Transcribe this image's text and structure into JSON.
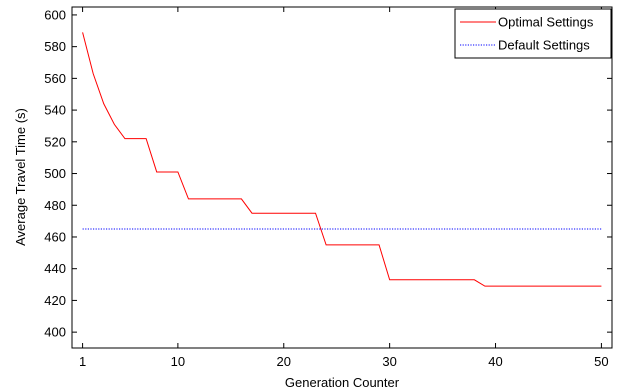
{
  "chart_data": {
    "type": "line",
    "title": "",
    "xlabel": "Generation Counter",
    "ylabel": "Average Travel Time (s)",
    "xlim": [
      0,
      51
    ],
    "ylim": [
      390,
      605
    ],
    "xticks": [
      1,
      10,
      20,
      30,
      40,
      50
    ],
    "yticks": [
      400,
      420,
      440,
      460,
      480,
      500,
      520,
      540,
      560,
      580,
      600
    ],
    "grid": false,
    "legend_position": "top-right",
    "series": [
      {
        "name": "Optimal Settings",
        "color": "#ff0000",
        "style": "solid",
        "x": [
          1,
          2,
          3,
          4,
          5,
          6,
          7,
          8,
          9,
          10,
          11,
          12,
          13,
          14,
          15,
          16,
          17,
          18,
          19,
          20,
          21,
          22,
          23,
          24,
          25,
          26,
          27,
          28,
          29,
          30,
          31,
          32,
          33,
          34,
          35,
          36,
          37,
          38,
          39,
          40,
          41,
          42,
          43,
          44,
          45,
          46,
          47,
          48,
          49,
          50
        ],
        "y": [
          589,
          563,
          544,
          531,
          522,
          522,
          522,
          501,
          501,
          501,
          484,
          484,
          484,
          484,
          484,
          484,
          475,
          475,
          475,
          475,
          475,
          475,
          475,
          455,
          455,
          455,
          455,
          455,
          455,
          433,
          433,
          433,
          433,
          433,
          433,
          433,
          433,
          433,
          429,
          429,
          429,
          429,
          429,
          429,
          429,
          429,
          429,
          429,
          429,
          429
        ]
      },
      {
        "name": "Default Settings",
        "color": "#0000ff",
        "style": "dotted",
        "x": [
          1,
          50
        ],
        "y": [
          465,
          465
        ]
      }
    ]
  }
}
